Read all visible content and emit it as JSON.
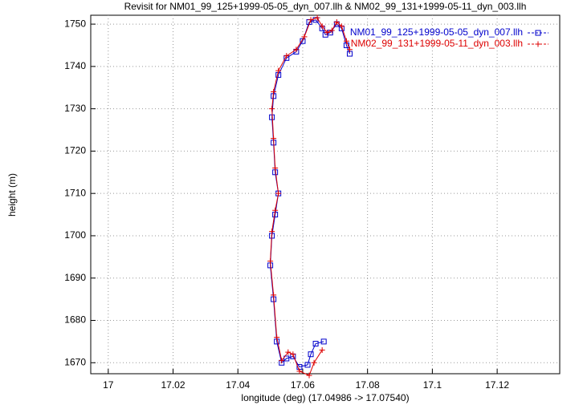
{
  "chart_data": {
    "type": "line",
    "title": "Revisit for NM01_99_125+1999-05-05_dyn_007.llh & NM02_99_131+1999-05-11_dyn_003.llh",
    "x_label": "longitude (deg) (17.04986 -> 17.07540)",
    "y_label": "height (m)",
    "xlim": [
      16.9946,
      17.1393
    ],
    "ylim": [
      1667.4,
      1752.1
    ],
    "xticks": [
      17,
      17.02,
      17.04,
      17.06,
      17.08,
      17.1,
      17.12
    ],
    "yticks": [
      1670,
      1680,
      1690,
      1700,
      1710,
      1720,
      1730,
      1740,
      1750
    ],
    "grid": true,
    "legend": "top-right",
    "series": [
      {
        "name": "NM01_99_125+1999-05-05_dyn_007.llh",
        "color": "#0000cc",
        "marker": "square",
        "x": [
          17.0665,
          17.064,
          17.0625,
          17.0615,
          17.059,
          17.057,
          17.055,
          17.0535,
          17.052,
          17.051,
          17.05,
          17.0505,
          17.0515,
          17.0525,
          17.0515,
          17.051,
          17.0505,
          17.051,
          17.0525,
          17.055,
          17.058,
          17.06,
          17.062,
          17.064,
          17.066,
          17.067,
          17.0685,
          17.0705,
          17.072,
          17.0735,
          17.0745
        ],
        "values": [
          1675,
          1674.5,
          1672,
          1669.5,
          1669,
          1671.5,
          1671,
          1670,
          1675,
          1685,
          1693,
          1700,
          1705,
          1710,
          1715,
          1722,
          1728,
          1733,
          1738,
          1742,
          1743.5,
          1746,
          1750.5,
          1751,
          1749,
          1747.5,
          1748,
          1750,
          1749,
          1745,
          1743
        ]
      },
      {
        "name": "NM02_99_131+1999-05-11_dyn_003.llh",
        "color": "#dd0000",
        "marker": "plus",
        "x": [
          17.066,
          17.0635,
          17.062,
          17.059,
          17.057,
          17.0555,
          17.0535,
          17.052,
          17.051,
          17.05,
          17.0505,
          17.0515,
          17.0525,
          17.0515,
          17.051,
          17.0505,
          17.051,
          17.0525,
          17.055,
          17.058,
          17.0605,
          17.0625,
          17.0645,
          17.066,
          17.0675,
          17.069,
          17.0705,
          17.072,
          17.0735,
          17.0745
        ],
        "values": [
          1673,
          1670,
          1667,
          1668,
          1672,
          1672.5,
          1670.5,
          1676,
          1686,
          1694,
          1701,
          1706,
          1710,
          1716,
          1723,
          1730,
          1734,
          1739,
          1742.5,
          1744,
          1747,
          1751,
          1751.5,
          1749.5,
          1748,
          1748.5,
          1750.5,
          1749.5,
          1746,
          1744
        ]
      }
    ]
  }
}
